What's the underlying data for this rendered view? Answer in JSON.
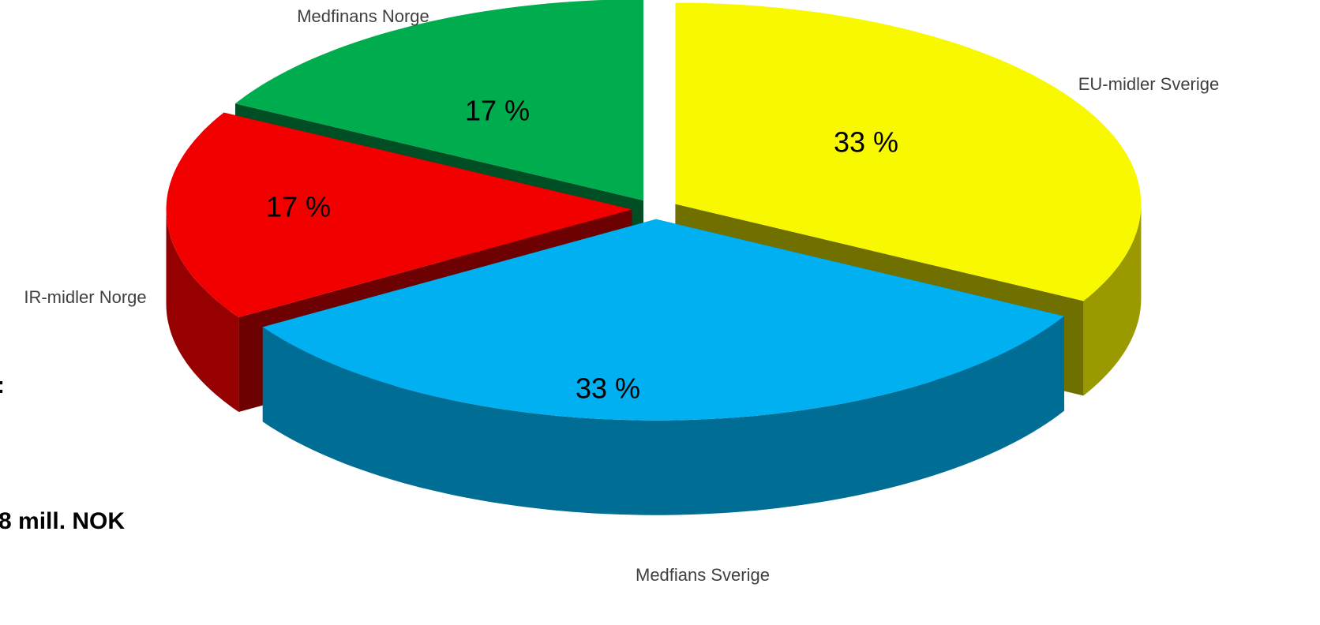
{
  "chart_data": {
    "type": "pie",
    "categories": [
      "EU-midler Sverige",
      "Medfians Sverige",
      "IR-midler Norge",
      "Medfinans Norge"
    ],
    "values": [
      33,
      33,
      17,
      17
    ],
    "value_labels": [
      "33 %",
      "33 %",
      "17 %",
      "17 %"
    ],
    "colors": [
      "#f8f800",
      "#00b0f0",
      "#f20000",
      "#00ad4e"
    ],
    "annotations": [
      ":",
      "8 mill. NOK"
    ]
  }
}
